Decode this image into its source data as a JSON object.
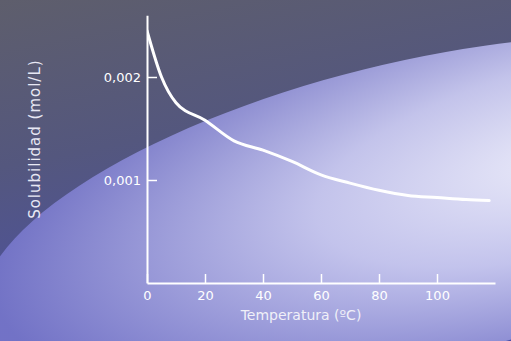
{
  "chart_data": {
    "type": "line",
    "x_label": "Temperatura (ºC)",
    "y_label": "Solubilidad (mol/L)",
    "x": [
      0,
      5,
      10,
      20,
      30,
      40,
      50,
      60,
      70,
      80,
      90,
      100,
      110,
      118
    ],
    "values": [
      0.00245,
      0.002,
      0.00175,
      0.00158,
      0.00138,
      0.00129,
      0.00118,
      0.00105,
      0.00097,
      0.0009,
      0.00085,
      0.00083,
      0.00081,
      0.0008
    ],
    "color": "#ffffff",
    "xlim": [
      0,
      120
    ],
    "ylim": [
      0,
      0.0026
    ],
    "xticks": [
      0,
      20,
      40,
      60,
      80,
      100
    ],
    "yticks": [
      {
        "value": 0.001,
        "label": "0,001"
      },
      {
        "value": 0.002,
        "label": "0,002"
      }
    ]
  }
}
